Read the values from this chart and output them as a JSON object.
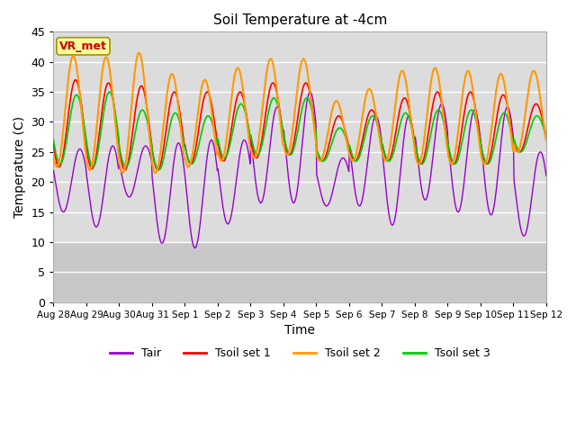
{
  "title": "Soil Temperature at -4cm",
  "xlabel": "Time",
  "ylabel": "Temperature (C)",
  "ylim": [
    0,
    45
  ],
  "xlim_start": 0,
  "xlim_end": 336,
  "xtick_labels": [
    "Aug 28",
    "Aug 29",
    "Aug 30",
    "Aug 31",
    "Sep 1",
    "Sep 2",
    "Sep 3",
    "Sep 4",
    "Sep 5",
    "Sep 6",
    "Sep 7",
    "Sep 8",
    "Sep 9",
    "Sep 10",
    "Sep 11",
    "Sep 12"
  ],
  "xtick_positions": [
    0,
    24,
    48,
    72,
    96,
    120,
    144,
    168,
    192,
    216,
    240,
    264,
    288,
    312,
    336,
    360
  ],
  "ytick_positions": [
    0,
    5,
    10,
    15,
    20,
    25,
    30,
    35,
    40,
    45
  ],
  "colors": {
    "Tair": "#9900cc",
    "Tsoil1": "#ff0000",
    "Tsoil2": "#ff9900",
    "Tsoil3": "#00cc00"
  },
  "legend_labels": [
    "Tair",
    "Tsoil set 1",
    "Tsoil set 2",
    "Tsoil set 3"
  ],
  "annotation_text": "VR_met",
  "annotation_color": "#cc0000",
  "annotation_bg": "#ffff99",
  "bg_upper": "#dcdcdc",
  "bg_lower": "#c8c8c8",
  "grid_color": "#ffffff",
  "tair_day_params": [
    {
      "min": 15.0,
      "max": 25.5,
      "phase": 0.55
    },
    {
      "min": 12.5,
      "max": 26.0,
      "phase": 0.55
    },
    {
      "min": 17.5,
      "max": 26.0,
      "phase": 0.55
    },
    {
      "min": 9.8,
      "max": 26.5,
      "phase": 0.55
    },
    {
      "min": 9.0,
      "max": 27.0,
      "phase": 0.55
    },
    {
      "min": 13.0,
      "max": 27.0,
      "phase": 0.55
    },
    {
      "min": 16.5,
      "max": 32.5,
      "phase": 0.55
    },
    {
      "min": 16.5,
      "max": 35.0,
      "phase": 0.55
    },
    {
      "min": 16.0,
      "max": 24.0,
      "phase": 0.55
    },
    {
      "min": 16.0,
      "max": 31.0,
      "phase": 0.55
    },
    {
      "min": 12.8,
      "max": 31.0,
      "phase": 0.55
    },
    {
      "min": 17.0,
      "max": 33.0,
      "phase": 0.55
    },
    {
      "min": 15.0,
      "max": 32.0,
      "phase": 0.55
    },
    {
      "min": 14.5,
      "max": 32.5,
      "phase": 0.55
    },
    {
      "min": 11.0,
      "max": 25.0,
      "phase": 0.55
    }
  ],
  "tsoil1_day_params": [
    {
      "min": 22.5,
      "max": 37.0,
      "phase": 0.42
    },
    {
      "min": 22.2,
      "max": 36.5,
      "phase": 0.42
    },
    {
      "min": 22.0,
      "max": 36.0,
      "phase": 0.42
    },
    {
      "min": 22.0,
      "max": 35.0,
      "phase": 0.42
    },
    {
      "min": 23.0,
      "max": 35.0,
      "phase": 0.42
    },
    {
      "min": 23.5,
      "max": 35.0,
      "phase": 0.42
    },
    {
      "min": 24.0,
      "max": 36.5,
      "phase": 0.42
    },
    {
      "min": 24.5,
      "max": 36.5,
      "phase": 0.42
    },
    {
      "min": 23.5,
      "max": 31.0,
      "phase": 0.42
    },
    {
      "min": 23.5,
      "max": 32.0,
      "phase": 0.42
    },
    {
      "min": 23.5,
      "max": 34.0,
      "phase": 0.42
    },
    {
      "min": 23.0,
      "max": 35.0,
      "phase": 0.42
    },
    {
      "min": 23.0,
      "max": 35.0,
      "phase": 0.42
    },
    {
      "min": 23.0,
      "max": 34.5,
      "phase": 0.42
    },
    {
      "min": 25.0,
      "max": 33.0,
      "phase": 0.42
    }
  ],
  "tsoil2_day_params": [
    {
      "min": 22.5,
      "max": 41.0,
      "phase": 0.35
    },
    {
      "min": 22.0,
      "max": 40.8,
      "phase": 0.35
    },
    {
      "min": 21.5,
      "max": 41.5,
      "phase": 0.35
    },
    {
      "min": 21.5,
      "max": 38.0,
      "phase": 0.35
    },
    {
      "min": 22.5,
      "max": 37.0,
      "phase": 0.35
    },
    {
      "min": 23.5,
      "max": 39.0,
      "phase": 0.35
    },
    {
      "min": 24.0,
      "max": 40.5,
      "phase": 0.35
    },
    {
      "min": 24.5,
      "max": 40.5,
      "phase": 0.35
    },
    {
      "min": 23.5,
      "max": 33.5,
      "phase": 0.35
    },
    {
      "min": 23.5,
      "max": 35.5,
      "phase": 0.35
    },
    {
      "min": 23.5,
      "max": 38.5,
      "phase": 0.35
    },
    {
      "min": 23.0,
      "max": 39.0,
      "phase": 0.35
    },
    {
      "min": 23.0,
      "max": 38.5,
      "phase": 0.35
    },
    {
      "min": 23.0,
      "max": 38.0,
      "phase": 0.35
    },
    {
      "min": 25.0,
      "max": 38.5,
      "phase": 0.35
    }
  ],
  "tsoil3_day_params": [
    {
      "min": 23.0,
      "max": 34.5,
      "phase": 0.45
    },
    {
      "min": 22.5,
      "max": 35.0,
      "phase": 0.45
    },
    {
      "min": 22.5,
      "max": 32.0,
      "phase": 0.45
    },
    {
      "min": 22.0,
      "max": 31.5,
      "phase": 0.45
    },
    {
      "min": 23.0,
      "max": 31.0,
      "phase": 0.45
    },
    {
      "min": 24.0,
      "max": 33.0,
      "phase": 0.45
    },
    {
      "min": 24.5,
      "max": 34.0,
      "phase": 0.45
    },
    {
      "min": 24.5,
      "max": 34.0,
      "phase": 0.45
    },
    {
      "min": 23.5,
      "max": 29.0,
      "phase": 0.45
    },
    {
      "min": 23.5,
      "max": 31.0,
      "phase": 0.45
    },
    {
      "min": 23.5,
      "max": 31.5,
      "phase": 0.45
    },
    {
      "min": 23.0,
      "max": 32.0,
      "phase": 0.45
    },
    {
      "min": 23.0,
      "max": 32.0,
      "phase": 0.45
    },
    {
      "min": 23.0,
      "max": 31.5,
      "phase": 0.45
    },
    {
      "min": 25.0,
      "max": 31.0,
      "phase": 0.45
    }
  ]
}
